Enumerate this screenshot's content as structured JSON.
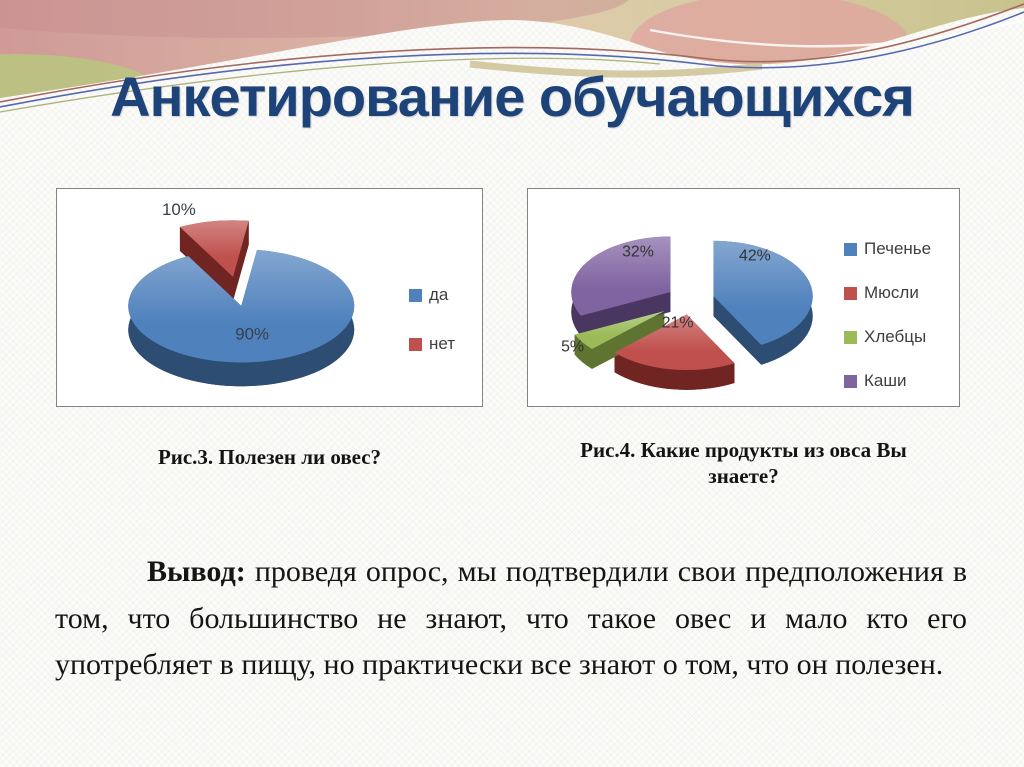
{
  "slide": {
    "title": "Анкетирование обучающихся"
  },
  "chart_data": [
    {
      "type": "pie",
      "style": "3d-exploded",
      "title": "Рис.3. Полезен ли овес?",
      "labels": "percent",
      "legend_position": "right",
      "slices": [
        {
          "label": "да",
          "value": 90,
          "color": "#4f81bd",
          "dark": "#2e4d72"
        },
        {
          "label": "нет",
          "value": 10,
          "color": "#c0504d",
          "dark": "#702523"
        }
      ]
    },
    {
      "type": "pie",
      "style": "3d-exploded",
      "title": "Рис.4. Какие продукты из овса Вы знаете?",
      "labels": "percent",
      "legend_position": "right",
      "slices": [
        {
          "label": "Печенье",
          "value": 42,
          "color": "#4f81bd",
          "dark": "#2e4d72"
        },
        {
          "label": "Мюсли",
          "value": 21,
          "color": "#c0504d",
          "dark": "#702523"
        },
        {
          "label": "Хлебцы",
          "value": 5,
          "color": "#9bbb59",
          "dark": "#5e7430"
        },
        {
          "label": "Каши",
          "value": 32,
          "color": "#8064a2",
          "dark": "#4a3761"
        }
      ]
    }
  ],
  "conclusion": {
    "lead": "Вывод:",
    "text": "проведя опрос, мы подтвердили свои предположения в том, что большинство не знают, что такое овес и мало кто его употребляет в пищу, но практически все знают о том, что он полезен."
  }
}
